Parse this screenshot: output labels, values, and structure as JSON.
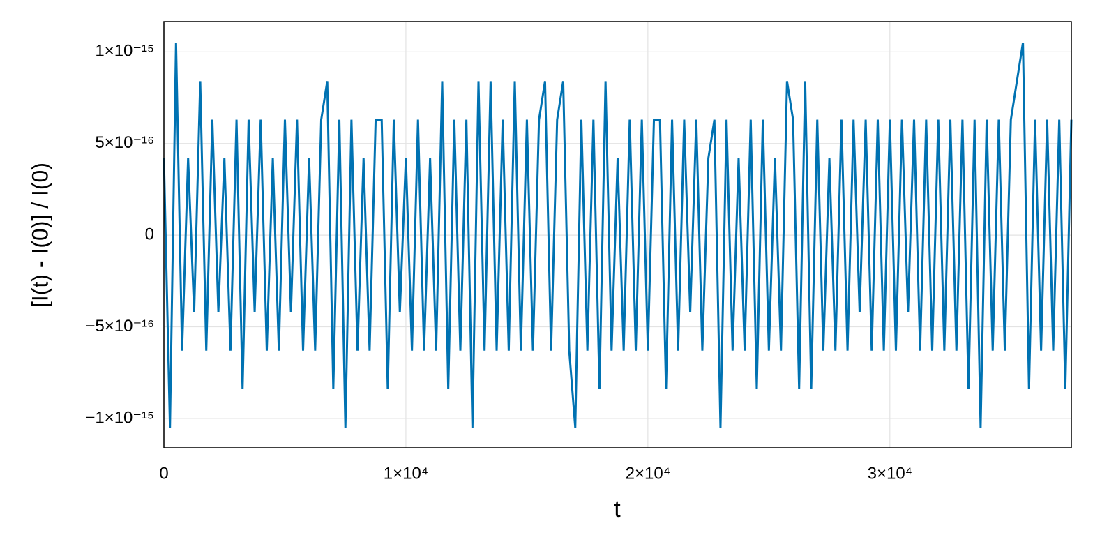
{
  "chart_data": {
    "type": "line",
    "xlabel": "t",
    "ylabel": "[I(t) - I(0)] / I(0)",
    "color": "#0072b2",
    "grid": true,
    "xlim": [
      0,
      37500
    ],
    "ylim": [
      -1.16e-15,
      1.165e-15
    ],
    "xticks": [
      0,
      {
        "value": 10000,
        "label": "1×10⁴"
      },
      {
        "value": 20000,
        "label": "2×10⁴"
      },
      {
        "value": 30000,
        "label": "3×10⁴"
      }
    ],
    "yticks": [
      {
        "value": -1e-15,
        "label": "−1×10⁻¹⁵"
      },
      {
        "value": -5e-16,
        "label": "−5×10⁻¹⁶"
      },
      0,
      {
        "value": 5e-16,
        "label": "5×10⁻¹⁶"
      },
      {
        "value": 1e-15,
        "label": "1×10⁻¹⁵"
      }
    ],
    "x": [
      0,
      250,
      500,
      750,
      1000,
      1250,
      1500,
      1750,
      2000,
      2250,
      2500,
      2750,
      3000,
      3250,
      3500,
      3750,
      4000,
      4250,
      4500,
      4750,
      5000,
      5250,
      5500,
      5750,
      6000,
      6250,
      6500,
      6750,
      7000,
      7250,
      7500,
      7750,
      8000,
      8250,
      8500,
      8750,
      9000,
      9250,
      9500,
      9750,
      10000,
      10250,
      10500,
      10750,
      11000,
      11250,
      11500,
      11750,
      12000,
      12250,
      12500,
      12750,
      13000,
      13250,
      13500,
      13750,
      14000,
      14250,
      14500,
      14750,
      15000,
      15250,
      15500,
      15750,
      16000,
      16250,
      16500,
      16750,
      17000,
      17250,
      17500,
      17750,
      18000,
      18250,
      18500,
      18750,
      19000,
      19250,
      19500,
      19750,
      20000,
      20250,
      20500,
      20750,
      21000,
      21250,
      21500,
      21750,
      22000,
      22250,
      22500,
      22750,
      23000,
      23250,
      23500,
      23750,
      24000,
      24250,
      24500,
      24750,
      25000,
      25250,
      25500,
      25750,
      26000,
      26250,
      26500,
      26750,
      27000,
      27250,
      27500,
      27750,
      28000,
      28250,
      28500,
      28750,
      29000,
      29250,
      29500,
      29750,
      30000,
      30250,
      30500,
      30750,
      31000,
      31250,
      31500,
      31750,
      32000,
      32250,
      32500,
      32750,
      33000,
      33250,
      33500,
      33750,
      34000,
      34250,
      34500,
      34750,
      35000,
      35250,
      35500,
      35750,
      36000,
      36250,
      36500,
      36750,
      37000,
      37250,
      37500
    ],
    "values": [
      4.2e-16,
      -1.05e-15,
      1.05e-15,
      -6.3e-16,
      4.2e-16,
      -4.2e-16,
      8.4e-16,
      -6.3e-16,
      6.3e-16,
      -4.2e-16,
      4.2e-16,
      -6.3e-16,
      6.3e-16,
      -8.4e-16,
      6.3e-16,
      -4.2e-16,
      6.3e-16,
      -6.3e-16,
      4.2e-16,
      -6.3e-16,
      6.3e-16,
      -4.2e-16,
      6.3e-16,
      -6.3e-16,
      4.2e-16,
      -6.3e-16,
      6.3e-16,
      8.4e-16,
      -8.4e-16,
      6.3e-16,
      -1.05e-15,
      6.3e-16,
      -6.3e-16,
      4.2e-16,
      -6.3e-16,
      6.3e-16,
      6.3e-16,
      -8.4e-16,
      6.3e-16,
      -4.2e-16,
      4.2e-16,
      -6.3e-16,
      6.3e-16,
      -6.3e-16,
      4.2e-16,
      -6.3e-16,
      8.4e-16,
      -8.4e-16,
      6.3e-16,
      -6.3e-16,
      6.3e-16,
      -1.05e-15,
      8.4e-16,
      -6.3e-16,
      8.4e-16,
      -6.3e-16,
      6.3e-16,
      -6.3e-16,
      8.4e-16,
      -6.3e-16,
      6.3e-16,
      -6.3e-16,
      6.3e-16,
      8.4e-16,
      -6.3e-16,
      6.3e-16,
      8.4e-16,
      -6.3e-16,
      -1.05e-15,
      6.3e-16,
      -6.3e-16,
      6.3e-16,
      -8.4e-16,
      8.4e-16,
      -6.3e-16,
      4.2e-16,
      -6.3e-16,
      6.3e-16,
      -6.3e-16,
      6.3e-16,
      -6.3e-16,
      6.3e-16,
      6.3e-16,
      -8.4e-16,
      6.3e-16,
      -6.3e-16,
      6.3e-16,
      -4.2e-16,
      6.3e-16,
      -6.3e-16,
      4.2e-16,
      6.3e-16,
      -1.05e-15,
      6.3e-16,
      -6.3e-16,
      4.2e-16,
      -6.3e-16,
      6.3e-16,
      -8.4e-16,
      6.3e-16,
      -6.3e-16,
      4.2e-16,
      -6.3e-16,
      8.4e-16,
      6.3e-16,
      -8.4e-16,
      8.4e-16,
      -8.4e-16,
      6.3e-16,
      -6.3e-16,
      4.2e-16,
      -6.3e-16,
      6.3e-16,
      -6.3e-16,
      6.3e-16,
      -4.2e-16,
      6.3e-16,
      -6.3e-16,
      6.3e-16,
      -6.3e-16,
      6.3e-16,
      -6.3e-16,
      6.3e-16,
      -4.2e-16,
      6.3e-16,
      -6.3e-16,
      6.3e-16,
      -6.3e-16,
      6.3e-16,
      -6.3e-16,
      6.3e-16,
      -6.3e-16,
      6.3e-16,
      -8.4e-16,
      6.3e-16,
      -1.05e-15,
      6.3e-16,
      -6.3e-16,
      6.3e-16,
      -6.3e-16,
      6.3e-16,
      8.4e-16,
      1.05e-15,
      -8.4e-16,
      6.3e-16,
      -6.3e-16,
      6.3e-16,
      -6.3e-16,
      6.3e-16,
      -8.4e-16,
      6.3e-16
    ]
  }
}
